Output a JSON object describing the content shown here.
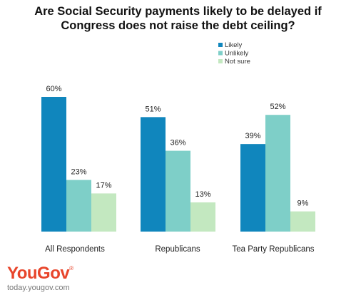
{
  "header": {
    "title_line1": "Are Social Security payments likely to be delayed if",
    "title_line2": "Congress does not raise the debt ceiling?"
  },
  "branding": {
    "logo": "YouGov",
    "logo_mark": "®",
    "site": "today.yougov.com",
    "logo_color": "#e8452b"
  },
  "chart_data": {
    "type": "bar",
    "title": "Are Social Security payments likely to be delayed if Congress does not raise the debt ceiling?",
    "categories": [
      "All Respondents",
      "Republicans",
      "Tea Party Republicans"
    ],
    "series": [
      {
        "name": "Likely",
        "values": [
          60,
          51,
          39
        ],
        "labels": [
          "60%",
          "51%",
          "39%"
        ],
        "color": "#1086bd"
      },
      {
        "name": "Unlikely",
        "values": [
          23,
          36,
          52
        ],
        "labels": [
          "23%",
          "36%",
          "52%"
        ],
        "color": "#7ecfc8"
      },
      {
        "name": "Not sure",
        "values": [
          17,
          13,
          9
        ],
        "labels": [
          "17%",
          "13%",
          "9%"
        ],
        "color": "#c3e8c0"
      }
    ],
    "ylim": [
      0,
      100
    ],
    "grid": false,
    "legend_position": "top-right"
  }
}
